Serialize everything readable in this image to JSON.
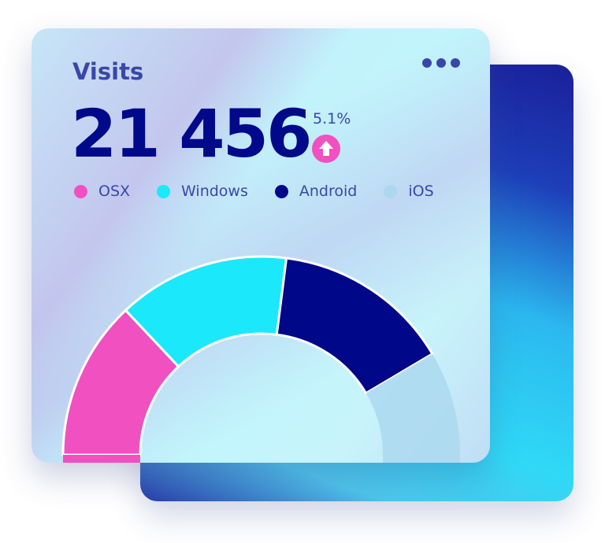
{
  "card": {
    "title": "Visits",
    "menu_icon": "more-horizontal-icon"
  },
  "summary": {
    "total": "21 456",
    "change": "5.1%",
    "trend_icon": "arrow-up-icon",
    "trend_color": "#f050c0"
  },
  "chart_data": {
    "type": "pie",
    "variant": "half-donut",
    "categories": [
      "OSX",
      "Windows",
      "Android",
      "iOS"
    ],
    "values": [
      26,
      28,
      29,
      17
    ],
    "colors": [
      "#f050c0",
      "#1be8fb",
      "#000788",
      "#acd8ef"
    ],
    "legend": "top"
  }
}
